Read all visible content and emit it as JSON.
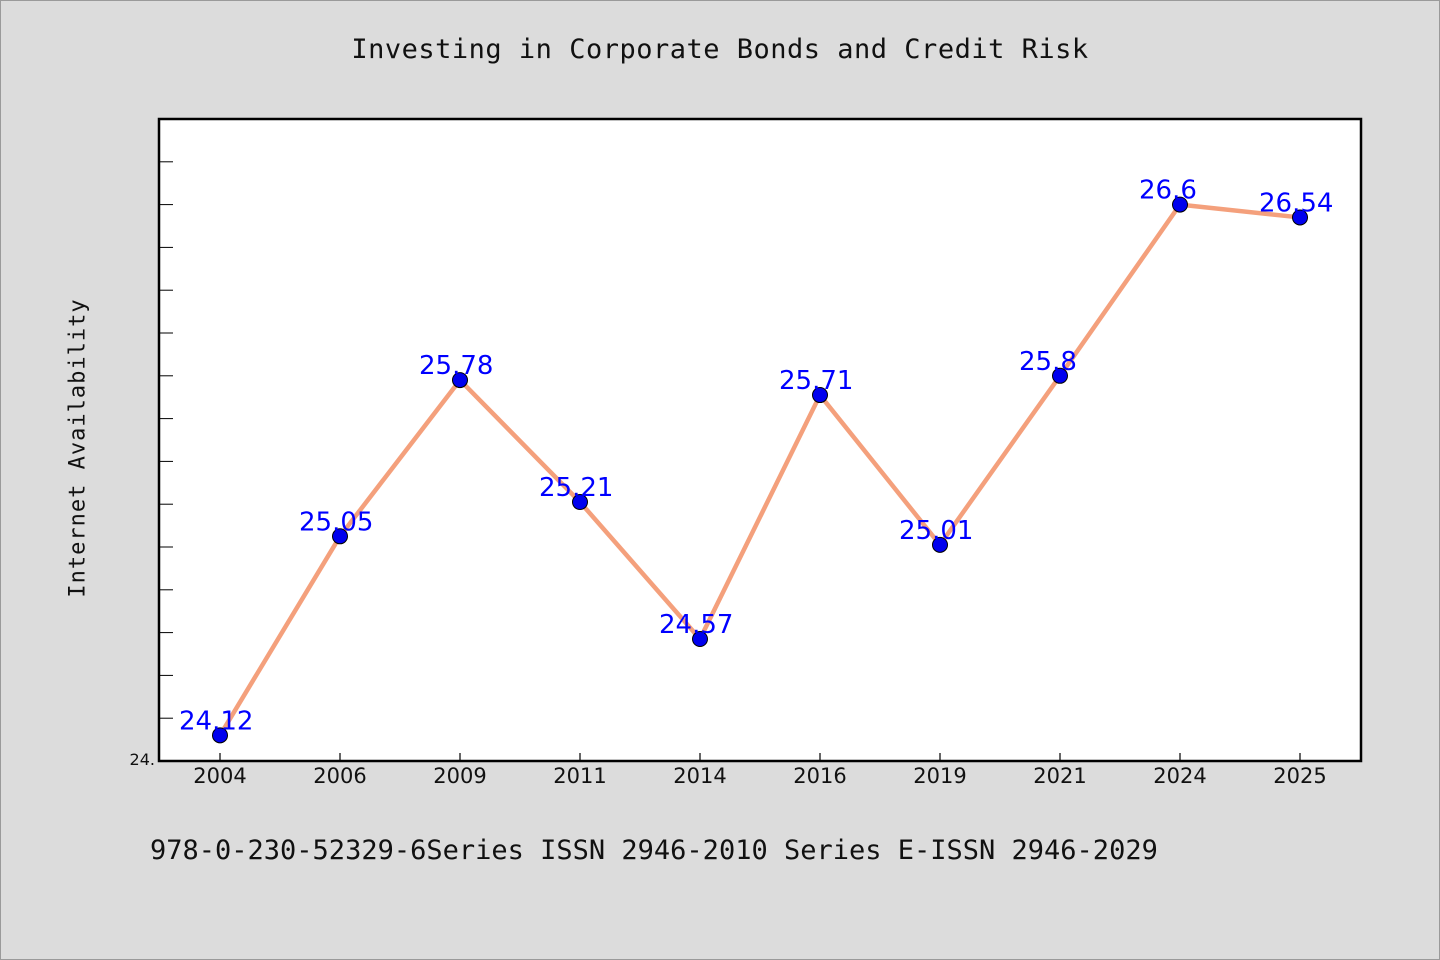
{
  "chart_data": {
    "type": "line",
    "title": "Investing in Corporate Bonds and Credit Risk",
    "ylabel": "Internet Availability",
    "xlabel": "",
    "categories": [
      "2004",
      "2006",
      "2009",
      "2011",
      "2014",
      "2016",
      "2019",
      "2021",
      "2024",
      "2025"
    ],
    "series": [
      {
        "values": [
          24.12,
          25.05,
          25.78,
          25.21,
          24.57,
          25.71,
          25.01,
          25.8,
          26.6,
          26.54
        ],
        "labels": [
          "24.12",
          "25.05",
          "25.78",
          "25.21",
          "24.57",
          "25.71",
          "25.01",
          "25.8",
          "26.6",
          "26.54"
        ],
        "line_color": "#f4a07c",
        "marker_color": "#0000ee"
      }
    ],
    "ylim": [
      24.0,
      27.0
    ],
    "y_tick_label": "24.",
    "grid": false,
    "legend": "none",
    "label_color": "#0000ff"
  },
  "footnote": "978-0-230-52329-6Series ISSN 2946-2010 Series E-ISSN 2946-2029"
}
